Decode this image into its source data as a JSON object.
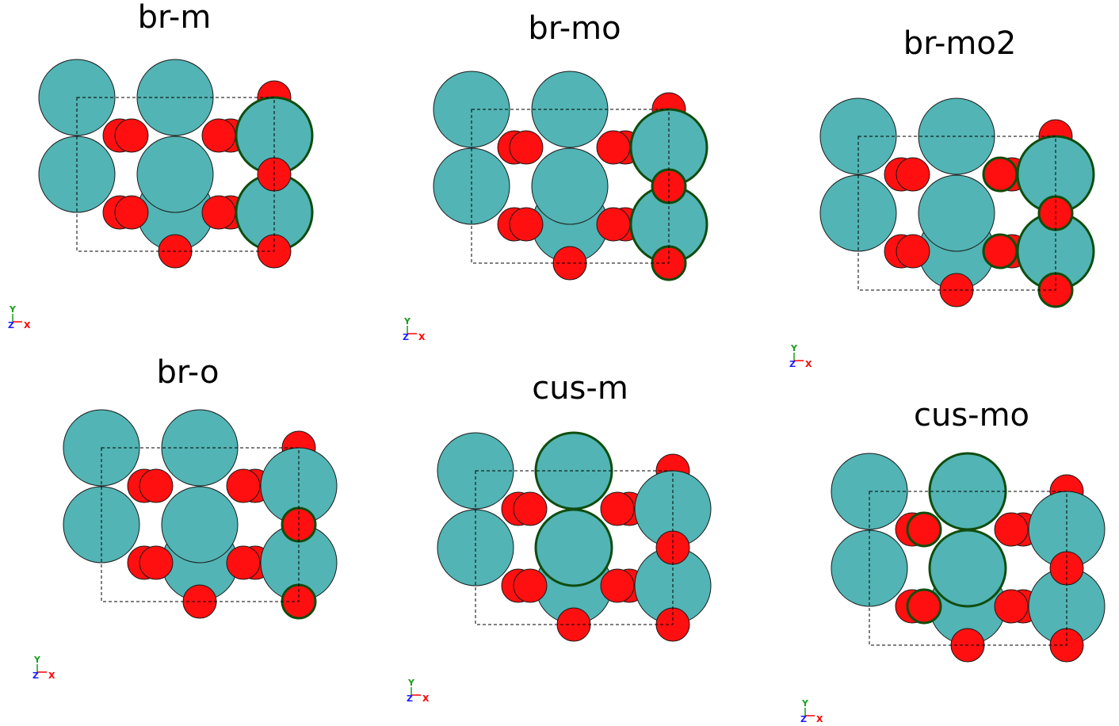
{
  "colors": {
    "metal": "#52b4b4",
    "oxygen": "#ff0f0f",
    "highlight_stroke": "#0f4d0f",
    "cell_line": "#000000",
    "axis_x": "#ff0000",
    "axis_y": "#1a9e1a",
    "axis_z": "#1c1cff"
  },
  "axis_labels": {
    "x": "X",
    "y": "Y",
    "z": "Z"
  },
  "panels": [
    {
      "title": "br-m",
      "highlighted_metal": [
        "mR1",
        "mR2"
      ],
      "highlighted_oxygen": []
    },
    {
      "title": "br-mo",
      "highlighted_metal": [
        "mR1",
        "mR2"
      ],
      "highlighted_oxygen": [
        "oR2",
        "oR3"
      ]
    },
    {
      "title": "br-mo2",
      "highlighted_metal": [
        "mR1",
        "mR2"
      ],
      "highlighted_oxygen": [
        "oR2",
        "oR3",
        "oM1",
        "oM2"
      ]
    },
    {
      "title": "br-o",
      "highlighted_metal": [],
      "highlighted_oxygen": [
        "oR2",
        "oR3"
      ]
    },
    {
      "title": "cus-m",
      "highlighted_metal": [
        "mC1",
        "mC2"
      ],
      "highlighted_oxygen": []
    },
    {
      "title": "cus-mo",
      "highlighted_metal": [
        "mC1",
        "mC2"
      ],
      "highlighted_oxygen": [
        "oL1",
        "oL2"
      ]
    }
  ]
}
